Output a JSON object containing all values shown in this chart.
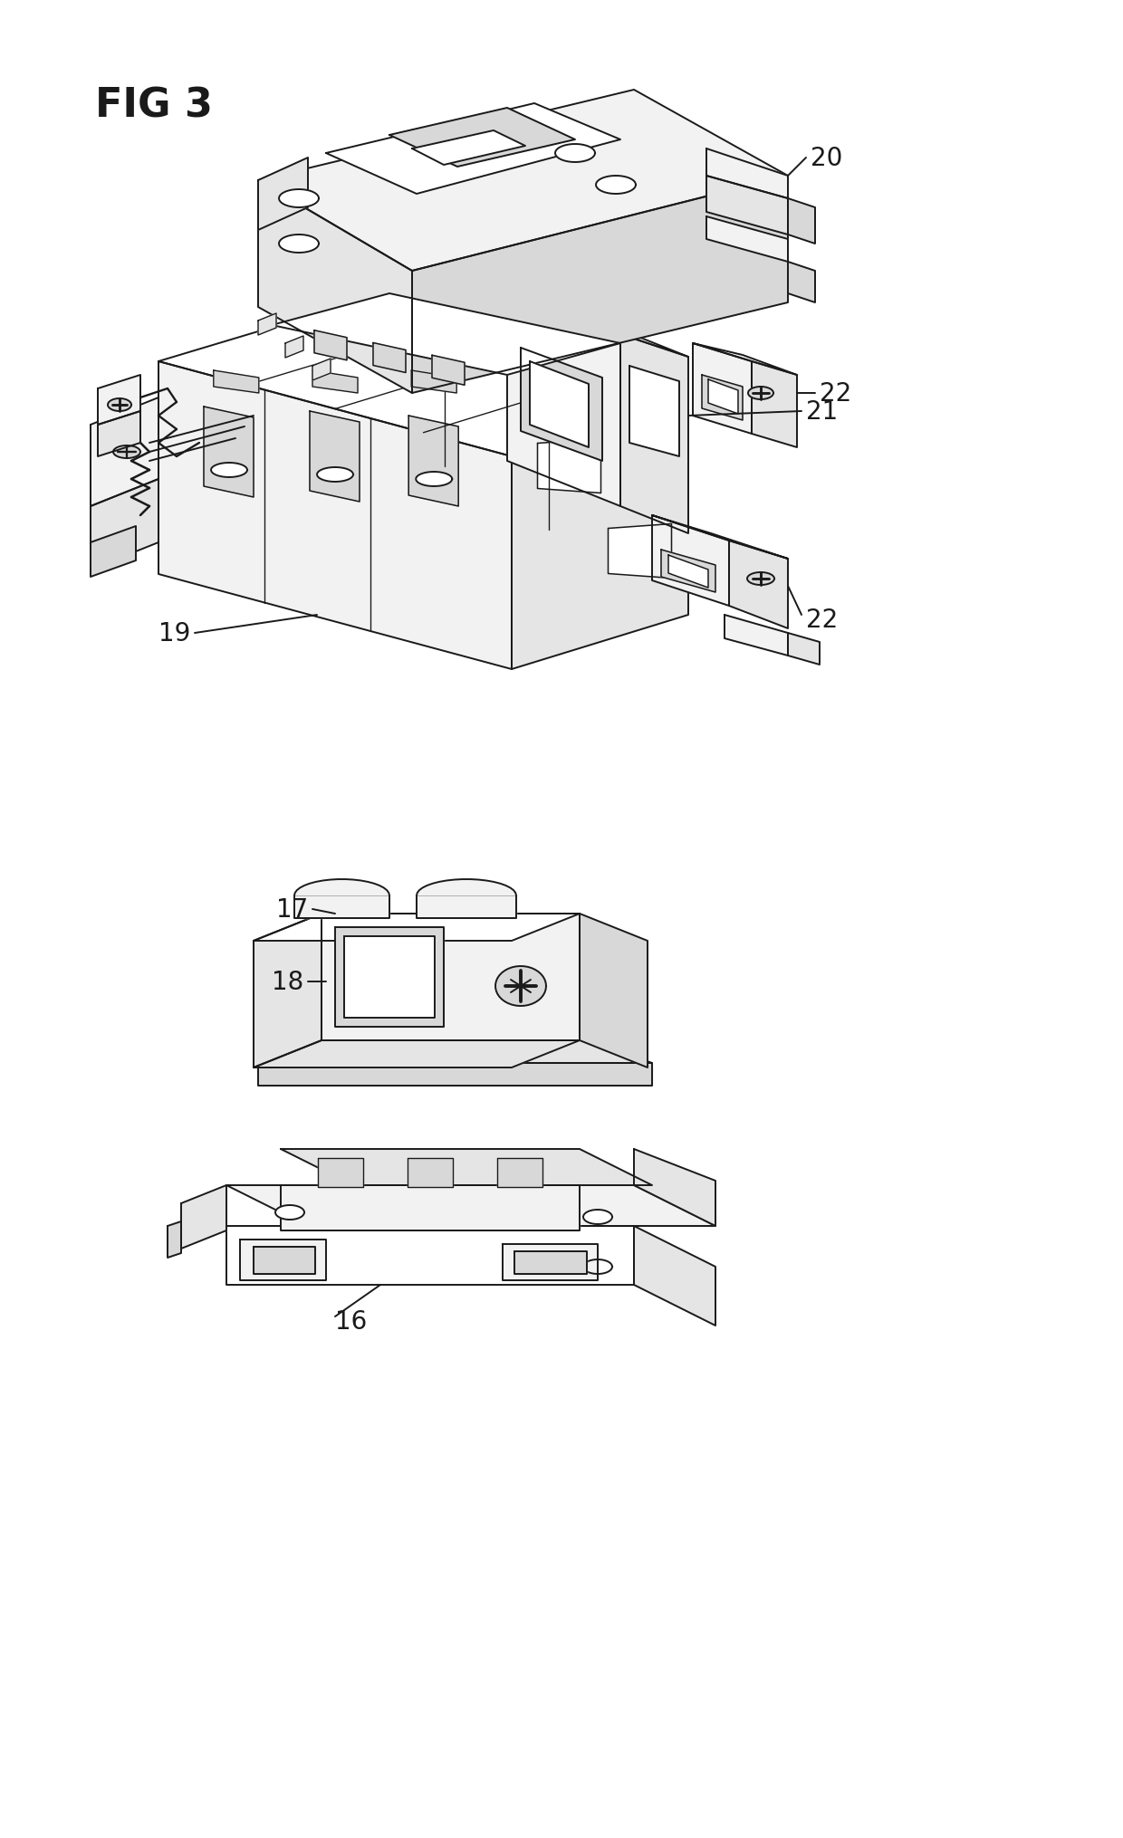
{
  "title": "FIG 3",
  "background_color": "#ffffff",
  "line_color": "#1a1a1a",
  "figsize": [
    12.4,
    20.31
  ],
  "dpi": 100,
  "title_fontsize": 32,
  "label_fontsize": 20,
  "line_width": 1.4
}
